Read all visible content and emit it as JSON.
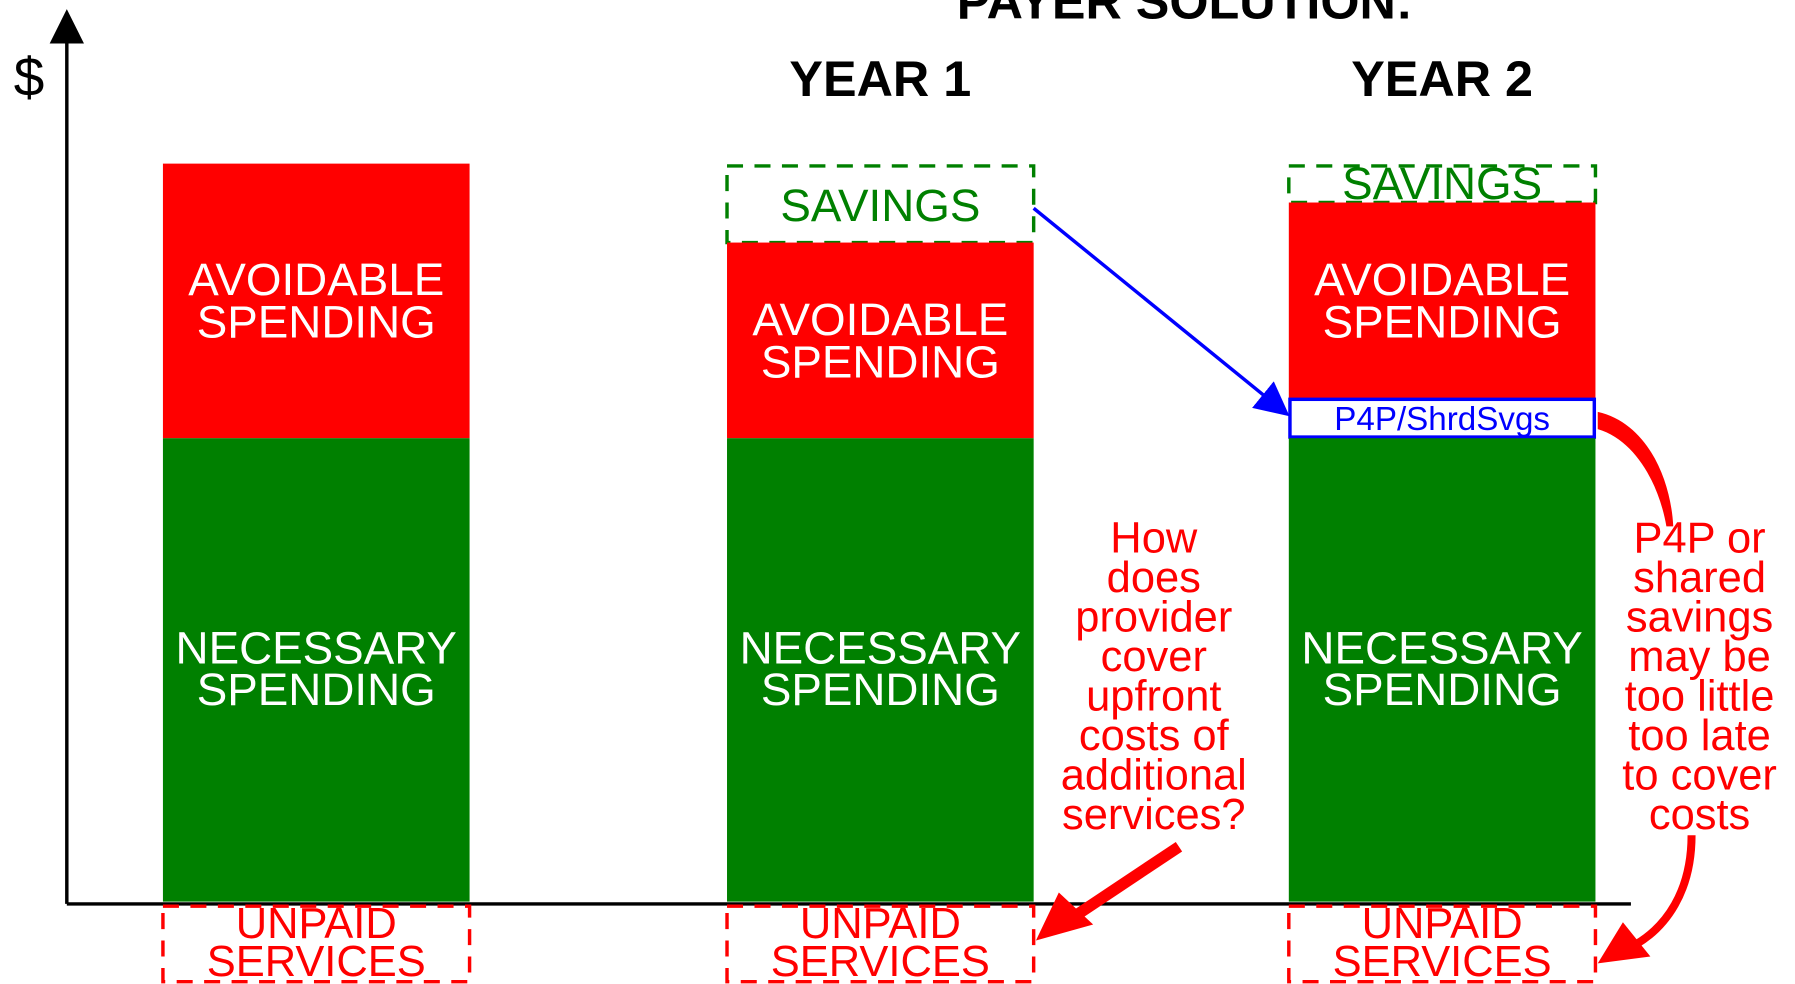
{
  "title": "PAYER SOLUTION:",
  "y_axis_label": "$",
  "bars": [
    {
      "avoidable": [
        "AVOIDABLE",
        "SPENDING"
      ],
      "necessary": [
        "NECESSARY",
        "SPENDING"
      ],
      "unpaid": [
        "UNPAID",
        "SERVICES"
      ]
    },
    {
      "heading": "YEAR 1",
      "savings": "SAVINGS",
      "avoidable": [
        "AVOIDABLE",
        "SPENDING"
      ],
      "necessary": [
        "NECESSARY",
        "SPENDING"
      ],
      "unpaid": [
        "UNPAID",
        "SERVICES"
      ]
    },
    {
      "heading": "YEAR 2",
      "savings": "SAVINGS",
      "p4p": "P4P/ShrdSvgs",
      "avoidable": [
        "AVOIDABLE",
        "SPENDING"
      ],
      "necessary": [
        "NECESSARY",
        "SPENDING"
      ],
      "unpaid": [
        "UNPAID",
        "SERVICES"
      ]
    }
  ],
  "annotations": [
    [
      "How",
      "does",
      "provider",
      "cover",
      "upfront",
      "costs of",
      "additional",
      "services?"
    ],
    [
      "P4P or",
      "shared",
      "savings",
      "may be",
      "too little",
      "too late",
      "to cover",
      "costs"
    ]
  ]
}
